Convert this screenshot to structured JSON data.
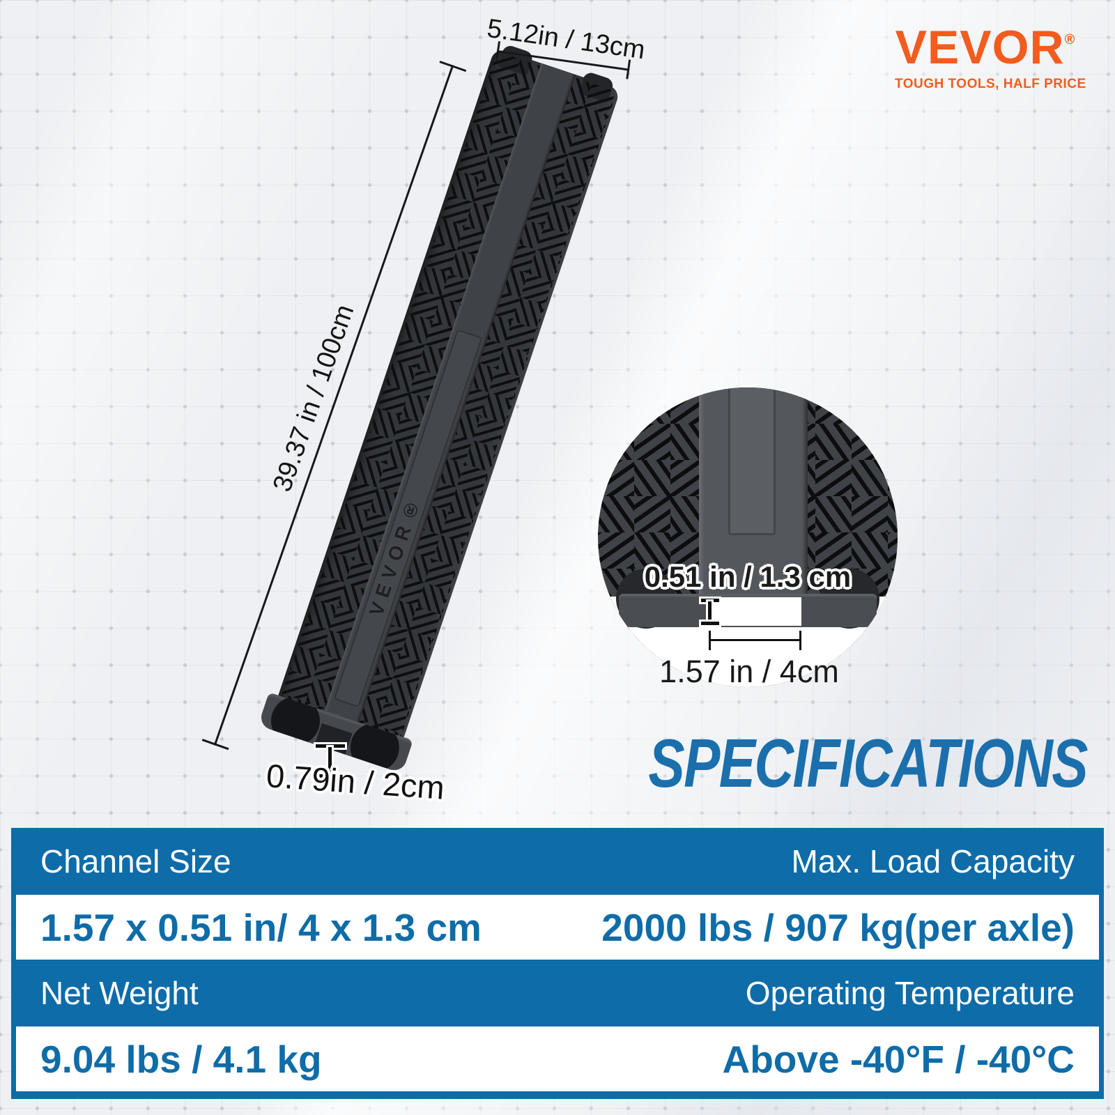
{
  "brand": {
    "name": "VEVOR",
    "registered": "®",
    "tagline": "TOUGH TOOLS, HALF PRICE",
    "color": "#F25C1E"
  },
  "product": {
    "body_label": "VEVOR®",
    "type": "1-channel cable protector ramp"
  },
  "dimensions": {
    "width_label": "5.12in / 13cm",
    "length_label": "39.37 in / 100cm",
    "channel_height_label": "0.79in / 2cm",
    "detail_channel_height_label": "0.51 in / 1.3 cm",
    "detail_channel_width_label": "1.57 in / 4cm"
  },
  "heading": {
    "text": "SPECIFICATIONS",
    "color": "#1B6FAD"
  },
  "spec_table": {
    "accent_color": "#0E6CA8",
    "rows": [
      {
        "left": "Channel Size",
        "right": "Max. Load Capacity"
      },
      {
        "left": "1.57 x 0.51 in/ 4 x 1.3 cm",
        "right": "2000 lbs / 907 kg(per axle)"
      },
      {
        "left": "Net Weight",
        "right": "Operating Temperature"
      },
      {
        "left": "9.04 lbs / 4.1 kg",
        "right": "Above -40°F / -40°C"
      }
    ]
  }
}
